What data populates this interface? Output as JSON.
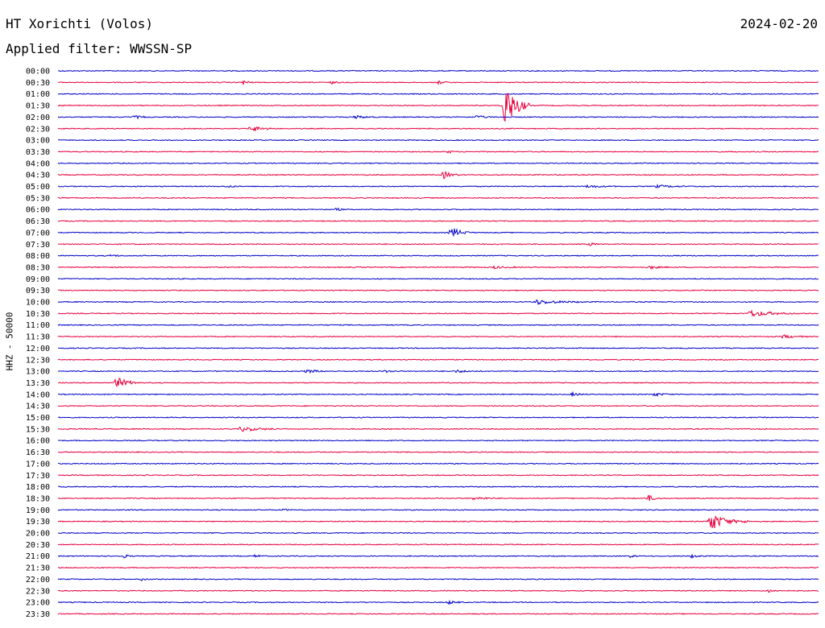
{
  "header": {
    "station": "HT Xorichti (Volos)",
    "filter": "Applied filter: WWSSN-SP",
    "date": "2024-02-20"
  },
  "chart_data": {
    "type": "line",
    "title": "HT Xorichti (Volos)",
    "subtitle": "Applied filter: WWSSN-SP",
    "date": "2024-02-20",
    "ylabel": "HHZ - 50000",
    "row_labels": [
      "00:00",
      "00:30",
      "01:00",
      "01:30",
      "02:00",
      "02:30",
      "03:00",
      "03:30",
      "04:00",
      "04:30",
      "05:00",
      "05:30",
      "06:00",
      "06:30",
      "07:00",
      "07:30",
      "08:00",
      "08:30",
      "09:00",
      "09:30",
      "10:00",
      "10:30",
      "11:00",
      "11:30",
      "12:00",
      "12:30",
      "13:00",
      "13:30",
      "14:00",
      "14:30",
      "15:00",
      "15:30",
      "16:00",
      "16:30",
      "17:00",
      "17:30",
      "18:00",
      "18:30",
      "19:00",
      "19:30",
      "20:00",
      "20:30",
      "21:00",
      "21:30",
      "22:00",
      "22:30",
      "23:00",
      "23:30"
    ],
    "colors": [
      "#0000c8",
      "#e8003c"
    ],
    "minutes_per_row": 30,
    "events": [
      {
        "row": 1,
        "minute": 7.3,
        "amp": 3,
        "dur": 0.4
      },
      {
        "row": 1,
        "minute": 15.0,
        "amp": 2,
        "dur": 0.5
      },
      {
        "row": 1,
        "minute": 10.8,
        "amp": 1.5,
        "dur": 0.4
      },
      {
        "row": 3,
        "minute": 17.6,
        "amp": 30,
        "dur": 1.0
      },
      {
        "row": 4,
        "minute": 3.0,
        "amp": 2,
        "dur": 0.6
      },
      {
        "row": 4,
        "minute": 11.7,
        "amp": 2,
        "dur": 0.8
      },
      {
        "row": 4,
        "minute": 16.5,
        "amp": 2,
        "dur": 0.7
      },
      {
        "row": 5,
        "minute": 7.6,
        "amp": 4,
        "dur": 1.0
      },
      {
        "row": 7,
        "minute": 15.4,
        "amp": 2,
        "dur": 0.3
      },
      {
        "row": 9,
        "minute": 15.2,
        "amp": 5,
        "dur": 0.6
      },
      {
        "row": 10,
        "minute": 6.7,
        "amp": 1.5,
        "dur": 0.5
      },
      {
        "row": 10,
        "minute": 20.9,
        "amp": 1.5,
        "dur": 1.2
      },
      {
        "row": 10,
        "minute": 23.6,
        "amp": 1.5,
        "dur": 1.5
      },
      {
        "row": 12,
        "minute": 11.0,
        "amp": 2,
        "dur": 0.3
      },
      {
        "row": 14,
        "minute": 15.5,
        "amp": 7,
        "dur": 0.8
      },
      {
        "row": 15,
        "minute": 21.0,
        "amp": 2,
        "dur": 0.4
      },
      {
        "row": 16,
        "minute": 2.1,
        "amp": 2,
        "dur": 0.4
      },
      {
        "row": 17,
        "minute": 23.3,
        "amp": 2,
        "dur": 0.8
      },
      {
        "row": 17,
        "minute": 17.2,
        "amp": 1.5,
        "dur": 1.0
      },
      {
        "row": 20,
        "minute": 18.8,
        "amp": 3,
        "dur": 2.0
      },
      {
        "row": 21,
        "minute": 27.3,
        "amp": 4,
        "dur": 1.8
      },
      {
        "row": 23,
        "minute": 28.6,
        "amp": 2,
        "dur": 1.0
      },
      {
        "row": 26,
        "minute": 9.8,
        "amp": 2,
        "dur": 1.0
      },
      {
        "row": 26,
        "minute": 12.9,
        "amp": 1.5,
        "dur": 0.6
      },
      {
        "row": 26,
        "minute": 15.7,
        "amp": 1.5,
        "dur": 1.0
      },
      {
        "row": 27,
        "minute": 2.3,
        "amp": 7,
        "dur": 1.0
      },
      {
        "row": 28,
        "minute": 20.3,
        "amp": 2,
        "dur": 0.6
      },
      {
        "row": 28,
        "minute": 23.5,
        "amp": 2,
        "dur": 0.8
      },
      {
        "row": 31,
        "minute": 7.2,
        "amp": 3,
        "dur": 1.5
      },
      {
        "row": 37,
        "minute": 16.4,
        "amp": 2,
        "dur": 1.0
      },
      {
        "row": 37,
        "minute": 23.3,
        "amp": 4,
        "dur": 0.5
      },
      {
        "row": 38,
        "minute": 8.9,
        "amp": 1.5,
        "dur": 0.3
      },
      {
        "row": 39,
        "minute": 25.7,
        "amp": 13,
        "dur": 1.2
      },
      {
        "row": 39,
        "minute": 27.0,
        "amp": 2,
        "dur": 0.5
      },
      {
        "row": 42,
        "minute": 2.6,
        "amp": 2,
        "dur": 0.4
      },
      {
        "row": 42,
        "minute": 7.8,
        "amp": 2,
        "dur": 0.4
      },
      {
        "row": 42,
        "minute": 22.6,
        "amp": 2,
        "dur": 0.3
      },
      {
        "row": 42,
        "minute": 25.0,
        "amp": 2,
        "dur": 0.5
      },
      {
        "row": 44,
        "minute": 3.3,
        "amp": 1.5,
        "dur": 0.3
      },
      {
        "row": 45,
        "minute": 28.0,
        "amp": 2,
        "dur": 0.6
      },
      {
        "row": 46,
        "minute": 15.4,
        "amp": 2,
        "dur": 0.6
      }
    ]
  }
}
